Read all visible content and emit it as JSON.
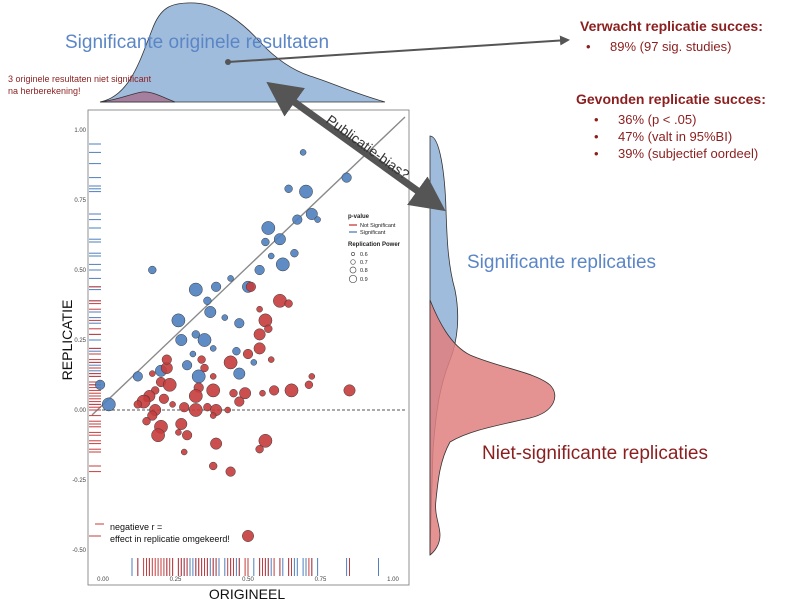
{
  "labels": {
    "top_title": "Significante originele resultaten",
    "recalc_note_line1": "3 originele resultaten niet significant",
    "recalc_note_line2": "na herberekening!",
    "bias": "Publicatie-bias?",
    "sig_reps": "Significante replicaties",
    "nonsig_reps": "Niet-significante replicaties",
    "neg_line1": "negatieve r =",
    "neg_line2": "effect in replicatie omgekeerd!"
  },
  "expected": {
    "title": "Verwacht replicatie succes:",
    "items": [
      "89% (97 sig. studies)"
    ]
  },
  "found": {
    "title": "Gevonden replicatie succes:",
    "items": [
      "36% (p < .05)",
      "47% (valt in 95%BI)",
      "39% (subjectief oordeel)"
    ]
  },
  "colors": {
    "significant": "#4f7fbf",
    "not_significant": "#c63c3c",
    "sig_fill": "#8fb0d6",
    "nonsig_fill": "#e07f7f",
    "annotation": "#8b1e1e",
    "title_blue": "#5b86c6",
    "arrow": "#555555"
  },
  "chart_data": {
    "type": "scatter",
    "xlabel": "ORIGINEEL",
    "ylabel": "REPLICATIE",
    "xlim": [
      -0.04,
      1.03
    ],
    "ylim": [
      -0.53,
      1.04
    ],
    "xticks": [
      "0.00",
      "0.25",
      "0.50",
      "0.75",
      "1.00"
    ],
    "yticks": [
      "-0.50",
      "-0.25",
      "0.00",
      "0.25",
      "0.50",
      "0.75",
      "1.00"
    ],
    "legend": {
      "title": "p-value",
      "entries": [
        "Not Significant",
        "Significant"
      ],
      "power_title": "Replication Power",
      "power_entries": [
        "0.6",
        "0.7",
        "0.8",
        "0.9"
      ],
      "placement": "top-right"
    },
    "series": [
      {
        "name": "Significant",
        "color": "#4f7fbf",
        "points": [
          [
            0.69,
            0.92
          ],
          [
            0.84,
            0.83
          ],
          [
            0.7,
            0.78
          ],
          [
            0.64,
            0.79
          ],
          [
            0.72,
            0.7
          ],
          [
            0.74,
            0.68
          ],
          [
            0.67,
            0.68
          ],
          [
            0.57,
            0.65
          ],
          [
            0.56,
            0.6
          ],
          [
            0.61,
            0.61
          ],
          [
            0.58,
            0.55
          ],
          [
            0.54,
            0.5
          ],
          [
            0.62,
            0.52
          ],
          [
            0.66,
            0.56
          ],
          [
            0.5,
            0.44
          ],
          [
            0.44,
            0.47
          ],
          [
            0.39,
            0.44
          ],
          [
            0.32,
            0.43
          ],
          [
            0.36,
            0.39
          ],
          [
            0.37,
            0.35
          ],
          [
            0.42,
            0.33
          ],
          [
            0.47,
            0.31
          ],
          [
            0.35,
            0.25
          ],
          [
            0.32,
            0.27
          ],
          [
            0.27,
            0.25
          ],
          [
            0.31,
            0.2
          ],
          [
            0.29,
            0.16
          ],
          [
            0.33,
            0.12
          ],
          [
            0.46,
            0.21
          ],
          [
            0.47,
            0.13
          ],
          [
            0.52,
            0.17
          ],
          [
            0.12,
            0.12
          ],
          [
            0.02,
            0.02
          ],
          [
            0.17,
            0.5
          ],
          [
            0.2,
            0.14
          ],
          [
            0.38,
            0.22
          ],
          [
            -0.01,
            0.09
          ],
          [
            0.26,
            0.32
          ]
        ]
      },
      {
        "name": "Not Significant",
        "color": "#c63c3c",
        "points": [
          [
            0.58,
            0.18
          ],
          [
            0.5,
            0.2
          ],
          [
            0.44,
            0.17
          ],
          [
            0.35,
            0.15
          ],
          [
            0.22,
            0.15
          ],
          [
            0.17,
            0.13
          ],
          [
            0.2,
            0.1
          ],
          [
            0.23,
            0.09
          ],
          [
            0.18,
            0.07
          ],
          [
            0.16,
            0.05
          ],
          [
            0.15,
            0.04
          ],
          [
            0.21,
            0.04
          ],
          [
            0.14,
            0.03
          ],
          [
            0.12,
            0.02
          ],
          [
            0.18,
            0.0
          ],
          [
            0.24,
            0.02
          ],
          [
            0.28,
            0.01
          ],
          [
            0.32,
            0.0
          ],
          [
            0.36,
            0.01
          ],
          [
            0.39,
            0.0
          ],
          [
            0.43,
            0.0
          ],
          [
            0.33,
            0.08
          ],
          [
            0.38,
            0.07
          ],
          [
            0.45,
            0.06
          ],
          [
            0.49,
            0.06
          ],
          [
            0.55,
            0.06
          ],
          [
            0.59,
            0.07
          ],
          [
            0.65,
            0.07
          ],
          [
            0.71,
            0.09
          ],
          [
            0.85,
            0.07
          ],
          [
            0.72,
            0.12
          ],
          [
            0.17,
            -0.02
          ],
          [
            0.2,
            -0.06
          ],
          [
            0.15,
            -0.04
          ],
          [
            0.27,
            -0.05
          ],
          [
            0.38,
            -0.02
          ],
          [
            0.29,
            -0.09
          ],
          [
            0.19,
            -0.09
          ],
          [
            0.38,
            -0.2
          ],
          [
            0.39,
            -0.12
          ],
          [
            0.28,
            -0.15
          ],
          [
            0.44,
            -0.22
          ],
          [
            0.56,
            -0.11
          ],
          [
            0.54,
            -0.14
          ],
          [
            0.5,
            -0.45
          ],
          [
            0.38,
            0.12
          ],
          [
            0.47,
            0.03
          ],
          [
            0.56,
            0.32
          ],
          [
            0.57,
            0.29
          ],
          [
            0.54,
            0.27
          ],
          [
            0.54,
            0.36
          ],
          [
            0.51,
            0.44
          ],
          [
            0.61,
            0.39
          ],
          [
            0.64,
            0.38
          ],
          [
            0.54,
            0.22
          ],
          [
            0.26,
            -0.08
          ],
          [
            0.22,
            0.18
          ],
          [
            0.32,
            0.05
          ],
          [
            0.34,
            0.18
          ]
        ]
      }
    ],
    "rug_x_blue": [
      0.1,
      0.12,
      0.16,
      0.2,
      0.22,
      0.24,
      0.26,
      0.27,
      0.28,
      0.29,
      0.3,
      0.31,
      0.32,
      0.33,
      0.34,
      0.35,
      0.36,
      0.37,
      0.38,
      0.39,
      0.4,
      0.42,
      0.44,
      0.46,
      0.47,
      0.5,
      0.52,
      0.54,
      0.56,
      0.57,
      0.58,
      0.61,
      0.62,
      0.64,
      0.66,
      0.67,
      0.69,
      0.7,
      0.72,
      0.74,
      0.84,
      0.95
    ],
    "rug_x_red": [
      0.12,
      0.14,
      0.15,
      0.16,
      0.17,
      0.18,
      0.19,
      0.2,
      0.21,
      0.22,
      0.23,
      0.24,
      0.26,
      0.27,
      0.28,
      0.29,
      0.32,
      0.33,
      0.34,
      0.35,
      0.36,
      0.38,
      0.39,
      0.43,
      0.44,
      0.45,
      0.47,
      0.49,
      0.5,
      0.54,
      0.55,
      0.56,
      0.57,
      0.59,
      0.61,
      0.64,
      0.65,
      0.71,
      0.72,
      0.85
    ],
    "rug_y_blue": [
      0.95,
      0.92,
      0.88,
      0.83,
      0.8,
      0.79,
      0.78,
      0.7,
      0.68,
      0.65,
      0.61,
      0.6,
      0.56,
      0.55,
      0.52,
      0.5,
      0.47,
      0.44,
      0.43,
      0.39,
      0.35,
      0.33,
      0.31,
      0.27,
      0.25,
      0.22,
      0.21,
      0.2,
      0.17,
      0.16,
      0.14,
      0.13,
      0.12,
      0.1,
      0.09,
      0.02
    ],
    "rug_y_red": [
      0.44,
      0.39,
      0.38,
      0.36,
      0.32,
      0.29,
      0.27,
      0.22,
      0.2,
      0.18,
      0.17,
      0.15,
      0.13,
      0.12,
      0.1,
      0.09,
      0.08,
      0.07,
      0.06,
      0.05,
      0.04,
      0.03,
      0.02,
      0.01,
      0.0,
      -0.02,
      -0.04,
      -0.05,
      -0.06,
      -0.08,
      -0.09,
      -0.11,
      -0.12,
      -0.14,
      -0.15,
      -0.2,
      -0.22,
      -0.45
    ]
  }
}
